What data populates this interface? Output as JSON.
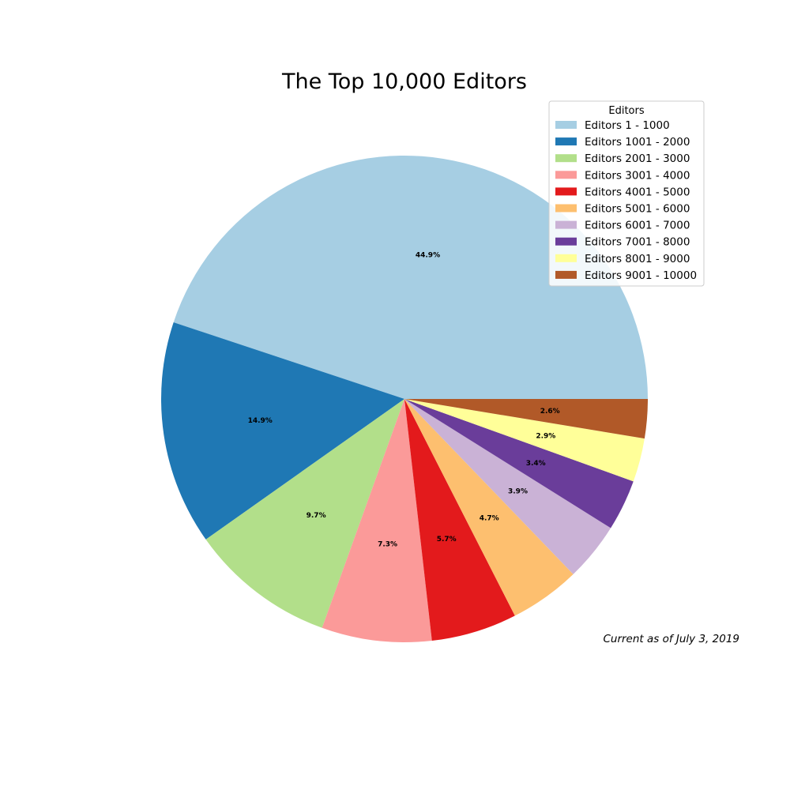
{
  "chart_data": {
    "type": "pie",
    "title": "The Top 10,000 Editors",
    "legend_title": "Editors",
    "legend_position": "top-right",
    "start_angle_deg": 0,
    "direction": "counterclockwise",
    "slices": [
      {
        "label": "Editors 1 - 1000",
        "value": 44.9,
        "pct_label": "44.9%",
        "color": "#a6cee3"
      },
      {
        "label": "Editors 1001 - 2000",
        "value": 14.9,
        "pct_label": "14.9%",
        "color": "#1f78b4"
      },
      {
        "label": "Editors 2001 - 3000",
        "value": 9.7,
        "pct_label": "9.7%",
        "color": "#b2df8a"
      },
      {
        "label": "Editors 3001 - 4000",
        "value": 7.3,
        "pct_label": "7.3%",
        "color": "#fb9a99"
      },
      {
        "label": "Editors 4001 - 5000",
        "value": 5.7,
        "pct_label": "5.7%",
        "color": "#e31a1c"
      },
      {
        "label": "Editors 5001 - 6000",
        "value": 4.7,
        "pct_label": "4.7%",
        "color": "#fdbf6f"
      },
      {
        "label": "Editors 6001 - 7000",
        "value": 3.9,
        "pct_label": "3.9%",
        "color": "#cab2d6"
      },
      {
        "label": "Editors 7001 - 8000",
        "value": 3.4,
        "pct_label": "3.4%",
        "color": "#6a3d9a"
      },
      {
        "label": "Editors 8001 - 9000",
        "value": 2.9,
        "pct_label": "2.9%",
        "color": "#ffff99"
      },
      {
        "label": "Editors 9001 - 10000",
        "value": 2.6,
        "pct_label": "2.6%",
        "color": "#b15928"
      }
    ],
    "annotation": "Current as of July 3, 2019"
  }
}
